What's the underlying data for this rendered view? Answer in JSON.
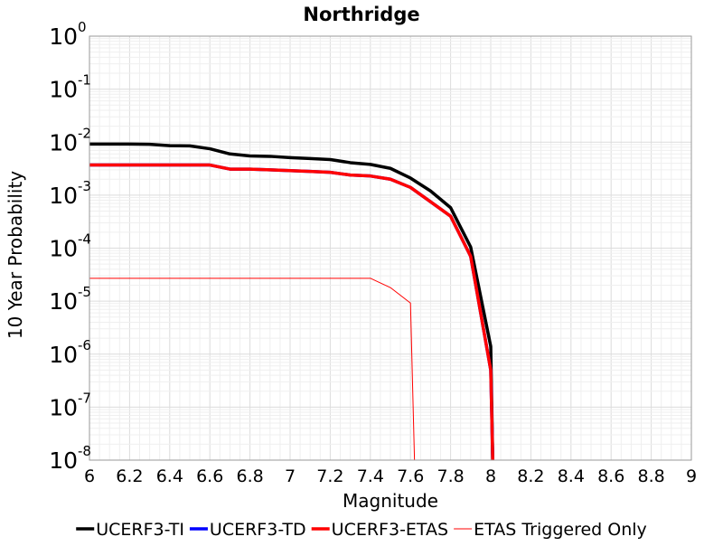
{
  "chart_data": {
    "type": "line",
    "title": "Northridge",
    "xlabel": "Magnitude",
    "ylabel": "10 Year Probability",
    "xlim": [
      6,
      9
    ],
    "ylim": [
      1e-08,
      1
    ],
    "y_scale": "log",
    "grid": true,
    "legend_position": "bottom",
    "x_ticks": [
      "6",
      "6.2",
      "6.4",
      "6.6",
      "6.8",
      "7",
      "7.2",
      "7.4",
      "7.6",
      "7.8",
      "8",
      "8.2",
      "8.4",
      "8.6",
      "8.8",
      "9"
    ],
    "y_ticks": [
      {
        "base": "10",
        "exp": "0"
      },
      {
        "base": "10",
        "exp": "-1"
      },
      {
        "base": "10",
        "exp": "-2"
      },
      {
        "base": "10",
        "exp": "-3"
      },
      {
        "base": "10",
        "exp": "-4"
      },
      {
        "base": "10",
        "exp": "-5"
      },
      {
        "base": "10",
        "exp": "-6"
      },
      {
        "base": "10",
        "exp": "-7"
      },
      {
        "base": "10",
        "exp": "-8"
      }
    ],
    "series": [
      {
        "name": "UCERF3-TI",
        "color": "#000000",
        "line_width": 3.5,
        "x": [
          6.0,
          6.1,
          6.2,
          6.3,
          6.4,
          6.5,
          6.6,
          6.7,
          6.8,
          6.9,
          7.0,
          7.1,
          7.2,
          7.3,
          7.4,
          7.5,
          7.6,
          7.7,
          7.8,
          7.9,
          8.0,
          8.01
        ],
        "y": [
          0.0092,
          0.0092,
          0.0092,
          0.0091,
          0.0086,
          0.0085,
          0.0075,
          0.006,
          0.0055,
          0.0054,
          0.0051,
          0.0049,
          0.0047,
          0.0041,
          0.0038,
          0.0032,
          0.0021,
          0.0012,
          0.00058,
          0.000105,
          1.4e-06,
          1e-08
        ]
      },
      {
        "name": "UCERF3-TD",
        "color": "#0000ff",
        "line_width": 3.5,
        "x": [
          6.0,
          6.1,
          6.2,
          6.3,
          6.4,
          6.5,
          6.6,
          6.7,
          6.8,
          6.9,
          7.0,
          7.1,
          7.2,
          7.3,
          7.4,
          7.5,
          7.6,
          7.7,
          7.8,
          7.9,
          8.0,
          8.01
        ],
        "y": [
          0.0037,
          0.0037,
          0.0037,
          0.0037,
          0.0037,
          0.0037,
          0.0037,
          0.0031,
          0.0031,
          0.003,
          0.0029,
          0.0028,
          0.0027,
          0.0024,
          0.0023,
          0.002,
          0.0014,
          0.00075,
          0.0004,
          7e-05,
          5e-07,
          1e-08
        ]
      },
      {
        "name": "UCERF3-ETAS",
        "color": "#ff0000",
        "line_width": 3.5,
        "x": [
          6.0,
          6.1,
          6.2,
          6.3,
          6.4,
          6.5,
          6.6,
          6.7,
          6.8,
          6.9,
          7.0,
          7.1,
          7.2,
          7.3,
          7.4,
          7.5,
          7.6,
          7.7,
          7.8,
          7.9,
          8.0,
          8.01
        ],
        "y": [
          0.0037,
          0.0037,
          0.0037,
          0.0037,
          0.0037,
          0.0037,
          0.0037,
          0.0031,
          0.0031,
          0.003,
          0.0029,
          0.0028,
          0.0027,
          0.0024,
          0.0023,
          0.002,
          0.0014,
          0.00075,
          0.0004,
          7e-05,
          5e-07,
          1e-08
        ]
      },
      {
        "name": "ETAS Triggered Only",
        "color": "#ff0000",
        "line_width": 1,
        "x": [
          6.0,
          6.1,
          6.2,
          6.3,
          6.4,
          6.5,
          6.6,
          6.7,
          6.8,
          6.9,
          7.0,
          7.1,
          7.2,
          7.3,
          7.4,
          7.5,
          7.6,
          7.62
        ],
        "y": [
          2.7e-05,
          2.7e-05,
          2.7e-05,
          2.7e-05,
          2.7e-05,
          2.7e-05,
          2.7e-05,
          2.7e-05,
          2.7e-05,
          2.7e-05,
          2.7e-05,
          2.7e-05,
          2.7e-05,
          2.7e-05,
          2.7e-05,
          1.8e-05,
          9.2e-06,
          1e-08
        ]
      }
    ]
  }
}
